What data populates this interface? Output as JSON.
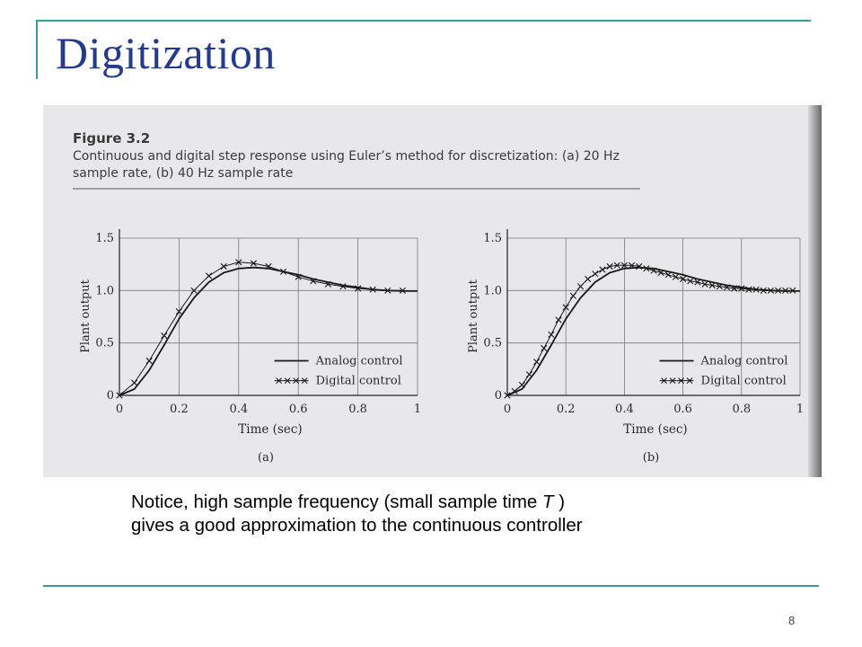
{
  "slide": {
    "title": "Digitization",
    "note_line1_pre": "Notice, high sample frequency (small sample time ",
    "note_line1_var": "T",
    "note_line1_post": " )",
    "note_line2": "gives a good approximation to the continuous controller",
    "page_number": "8",
    "colors": {
      "title": "#243a8c",
      "rule": "#3a9a9a"
    }
  },
  "figure": {
    "label": "Figure 3.2",
    "caption_line1": "Continuous and digital step response using Euler’s method for discretization: (a) 20 Hz",
    "caption_line2": "sample rate, (b) 40 Hz sample rate"
  },
  "chart_data": [
    {
      "type": "line",
      "panel_label": "(a)",
      "xlabel": "Time (sec)",
      "ylabel": "Plant output",
      "xlim": [
        0,
        1
      ],
      "ylim": [
        0,
        1.5
      ],
      "xticks": [
        "0",
        "0.2",
        "0.4",
        "0.6",
        "0.8",
        "1"
      ],
      "yticks": [
        "0",
        "0.5",
        "1.0",
        "1.5"
      ],
      "grid": true,
      "legend_position": "bottom-right",
      "series": [
        {
          "name": "Analog control",
          "marker": "none",
          "x": [
            0,
            0.05,
            0.1,
            0.15,
            0.2,
            0.25,
            0.3,
            0.35,
            0.4,
            0.45,
            0.5,
            0.55,
            0.6,
            0.65,
            0.7,
            0.75,
            0.8,
            0.85,
            0.9,
            0.95,
            1.0
          ],
          "y": [
            0,
            0.06,
            0.24,
            0.48,
            0.73,
            0.93,
            1.08,
            1.17,
            1.21,
            1.22,
            1.21,
            1.18,
            1.15,
            1.11,
            1.08,
            1.05,
            1.03,
            1.01,
            1.0,
            0.995,
            0.995
          ]
        },
        {
          "name": "Digital control",
          "marker": "x",
          "x": [
            0,
            0.05,
            0.1,
            0.15,
            0.2,
            0.25,
            0.3,
            0.35,
            0.4,
            0.45,
            0.5,
            0.55,
            0.6,
            0.65,
            0.7,
            0.75,
            0.8,
            0.85,
            0.9,
            0.95
          ],
          "y": [
            0,
            0.12,
            0.33,
            0.57,
            0.8,
            1.0,
            1.14,
            1.23,
            1.27,
            1.26,
            1.23,
            1.18,
            1.13,
            1.09,
            1.06,
            1.04,
            1.02,
            1.01,
            1.0,
            1.0
          ]
        }
      ]
    },
    {
      "type": "line",
      "panel_label": "(b)",
      "xlabel": "Time (sec)",
      "ylabel": "Plant output",
      "xlim": [
        0,
        1
      ],
      "ylim": [
        0,
        1.5
      ],
      "xticks": [
        "0",
        "0.2",
        "0.4",
        "0.6",
        "0.8",
        "1"
      ],
      "yticks": [
        "0",
        "0.5",
        "1.0",
        "1.5"
      ],
      "grid": true,
      "legend_position": "bottom-right",
      "series": [
        {
          "name": "Analog control",
          "marker": "none",
          "x": [
            0,
            0.05,
            0.1,
            0.15,
            0.2,
            0.25,
            0.3,
            0.35,
            0.4,
            0.45,
            0.5,
            0.55,
            0.6,
            0.65,
            0.7,
            0.75,
            0.8,
            0.85,
            0.9,
            0.95,
            1.0
          ],
          "y": [
            0,
            0.06,
            0.24,
            0.48,
            0.73,
            0.93,
            1.08,
            1.17,
            1.21,
            1.22,
            1.21,
            1.18,
            1.15,
            1.11,
            1.08,
            1.05,
            1.03,
            1.01,
            1.0,
            0.995,
            0.995
          ]
        },
        {
          "name": "Digital control",
          "marker": "x",
          "x": [
            0,
            0.025,
            0.05,
            0.075,
            0.1,
            0.125,
            0.15,
            0.175,
            0.2,
            0.225,
            0.25,
            0.275,
            0.3,
            0.325,
            0.35,
            0.375,
            0.4,
            0.425,
            0.45,
            0.475,
            0.5,
            0.525,
            0.55,
            0.575,
            0.6,
            0.625,
            0.65,
            0.675,
            0.7,
            0.725,
            0.75,
            0.775,
            0.8,
            0.825,
            0.85,
            0.875,
            0.9,
            0.925,
            0.95,
            0.975
          ],
          "y": [
            0,
            0.04,
            0.1,
            0.2,
            0.32,
            0.45,
            0.58,
            0.72,
            0.84,
            0.95,
            1.04,
            1.11,
            1.16,
            1.2,
            1.23,
            1.24,
            1.24,
            1.24,
            1.23,
            1.21,
            1.19,
            1.17,
            1.15,
            1.13,
            1.11,
            1.09,
            1.08,
            1.06,
            1.05,
            1.04,
            1.03,
            1.02,
            1.02,
            1.01,
            1.01,
            1.0,
            1.0,
            1.0,
            1.0,
            1.0
          ]
        }
      ]
    }
  ]
}
